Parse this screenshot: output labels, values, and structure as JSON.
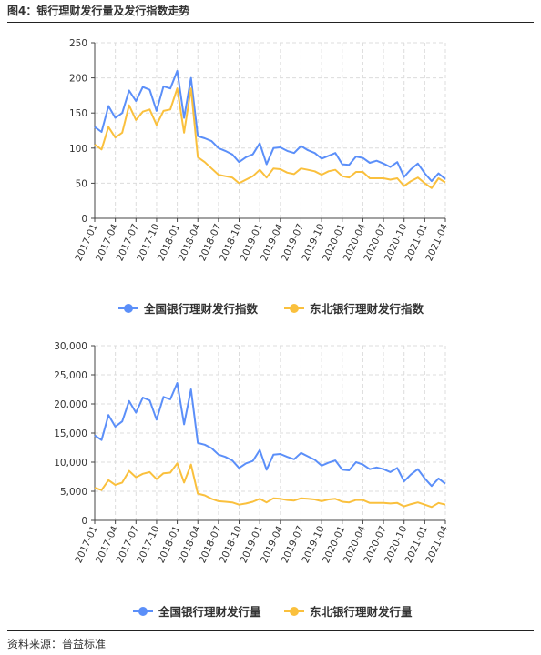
{
  "figure_title": "图4：银行理财发行量及发行指数走势",
  "source": "资料来源：普益标准",
  "chart_data": [
    {
      "type": "line",
      "title": "",
      "xlabel": "",
      "ylabel": "",
      "ylim": [
        0,
        250
      ],
      "yticks": [
        "0",
        "50",
        "100",
        "150",
        "200",
        "250"
      ],
      "ytick_values": [
        0,
        50,
        100,
        150,
        200,
        250
      ],
      "x_ticks": [
        "2017-01",
        "2017-04",
        "2017-07",
        "2017-10",
        "2018-01",
        "2018-04",
        "2018-07",
        "2018-10",
        "2019-01",
        "2019-04",
        "2019-07",
        "2019-10",
        "2020-01",
        "2020-04",
        "2020-07",
        "2020-10",
        "2021-01",
        "2021-04"
      ],
      "grid": true,
      "legend_position": "bottom",
      "series": [
        {
          "name": "全国银行理财发行指数",
          "color": "#5B8FF9",
          "values": [
            130,
            123,
            160,
            143,
            150,
            182,
            167,
            187,
            183,
            153,
            188,
            185,
            210,
            143,
            200,
            117,
            114,
            110,
            100,
            96,
            91,
            80,
            87,
            91,
            107,
            77,
            100,
            101,
            96,
            93,
            103,
            97,
            93,
            85,
            89,
            93,
            77,
            76,
            88,
            86,
            79,
            82,
            78,
            73,
            80,
            59,
            70,
            78,
            64,
            53,
            64,
            56
          ]
        },
        {
          "name": "东北银行理财发行指数",
          "color": "#FAC03D",
          "values": [
            105,
            98,
            130,
            115,
            122,
            161,
            140,
            152,
            155,
            133,
            153,
            155,
            185,
            122,
            185,
            87,
            80,
            71,
            62,
            60,
            58,
            50,
            55,
            60,
            69,
            58,
            71,
            70,
            65,
            63,
            71,
            69,
            67,
            62,
            67,
            69,
            60,
            58,
            66,
            66,
            57,
            57,
            57,
            55,
            57,
            46,
            53,
            58,
            50,
            43,
            57,
            51
          ]
        }
      ]
    },
    {
      "type": "line",
      "title": "",
      "xlabel": "",
      "ylabel": "",
      "ylim": [
        0,
        30000
      ],
      "yticks": [
        "0",
        "5,000",
        "10,000",
        "15,000",
        "20,000",
        "25,000",
        "30,000"
      ],
      "ytick_values": [
        0,
        5000,
        10000,
        15000,
        20000,
        25000,
        30000
      ],
      "x_ticks": [
        "2017-01",
        "2017-04",
        "2017-07",
        "2017-10",
        "2018-01",
        "2018-04",
        "2018-07",
        "2018-10",
        "2019-01",
        "2019-04",
        "2019-07",
        "2019-10",
        "2020-01",
        "2020-04",
        "2020-07",
        "2020-10",
        "2021-01",
        "2021-04"
      ],
      "grid": true,
      "legend_position": "bottom",
      "series": [
        {
          "name": "全国银行理财发行量",
          "color": "#5B8FF9",
          "values": [
            14600,
            13800,
            18100,
            16100,
            17000,
            20500,
            18500,
            21100,
            20600,
            17300,
            21200,
            20800,
            23600,
            16500,
            22500,
            13300,
            13000,
            12400,
            11300,
            10900,
            10300,
            9000,
            9800,
            10200,
            12100,
            8700,
            11300,
            11400,
            10900,
            10500,
            11600,
            11000,
            10400,
            9400,
            9900,
            10300,
            8700,
            8600,
            10000,
            9600,
            8800,
            9100,
            8800,
            8300,
            9000,
            6700,
            7900,
            8800,
            7200,
            5900,
            7200,
            6300
          ]
        },
        {
          "name": "东北银行理财发行量",
          "color": "#FAC03D",
          "values": [
            5600,
            5200,
            6900,
            6100,
            6500,
            8500,
            7400,
            8000,
            8300,
            7100,
            8100,
            8200,
            9800,
            6500,
            9600,
            4600,
            4300,
            3700,
            3300,
            3200,
            3100,
            2700,
            2900,
            3200,
            3700,
            3100,
            3800,
            3700,
            3500,
            3400,
            3800,
            3700,
            3600,
            3300,
            3600,
            3700,
            3200,
            3100,
            3500,
            3500,
            3000,
            3000,
            3000,
            2900,
            3000,
            2400,
            2800,
            3100,
            2700,
            2300,
            3000,
            2700
          ]
        }
      ]
    }
  ]
}
